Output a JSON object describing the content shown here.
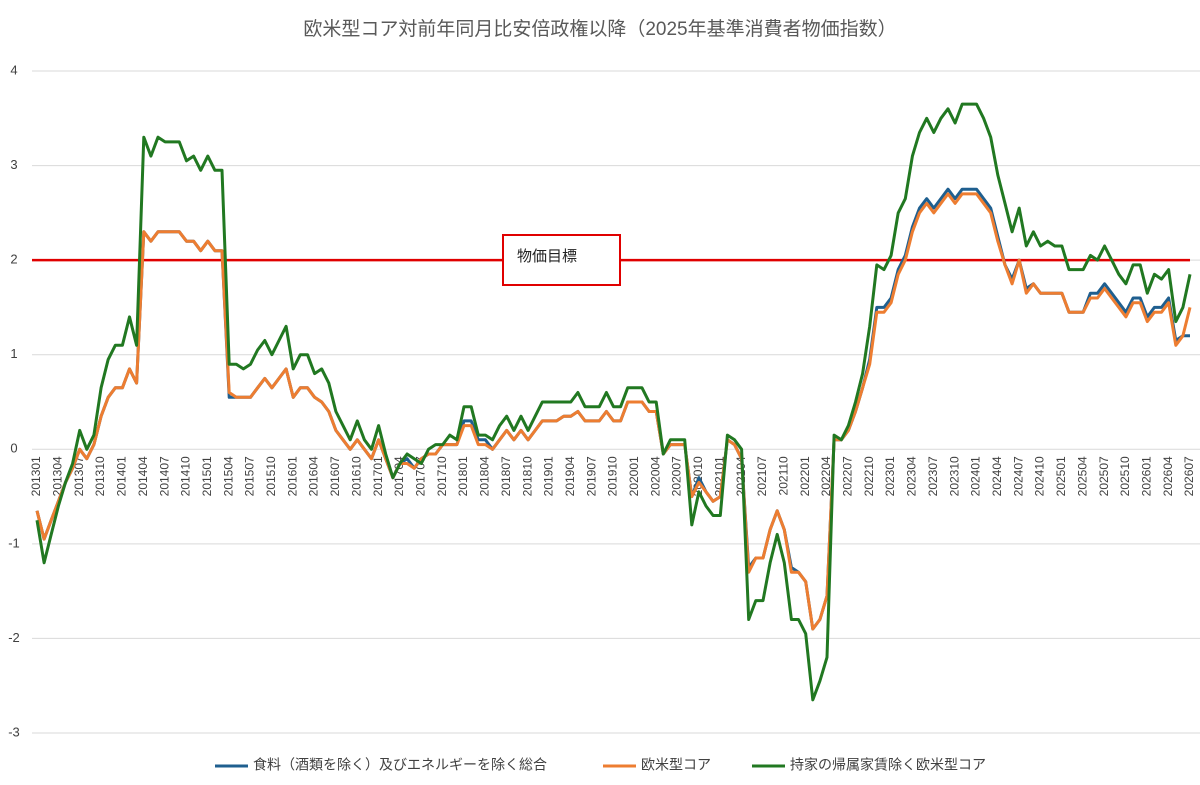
{
  "chart_data": {
    "type": "line",
    "title": "欧米型コア対前年同月比安倍政権以降（2025年基準消費者物価指数）",
    "categories": [
      "201301",
      null,
      null,
      "201304",
      null,
      null,
      "201307",
      null,
      null,
      "201310",
      null,
      null,
      "201401",
      null,
      null,
      "201404",
      null,
      null,
      "201407",
      null,
      null,
      "201410",
      null,
      null,
      "201501",
      null,
      null,
      "201504",
      null,
      null,
      "201507",
      null,
      null,
      "201510",
      null,
      null,
      "201601",
      null,
      null,
      "201604",
      null,
      null,
      "201607",
      null,
      null,
      "201610",
      null,
      null,
      "201701",
      null,
      null,
      "201704",
      null,
      null,
      "201707",
      null,
      null,
      "201710",
      null,
      null,
      "201801",
      null,
      null,
      "201804",
      null,
      null,
      "201807",
      null,
      null,
      "201810",
      null,
      null,
      "201901",
      null,
      null,
      "201904",
      null,
      null,
      "201907",
      null,
      null,
      "201910",
      null,
      null,
      "202001",
      null,
      null,
      "202004",
      null,
      null,
      "202007",
      null,
      null,
      "202010",
      null,
      null,
      "202101",
      null,
      null,
      "202104",
      null,
      null,
      "202107",
      null,
      null,
      "202110",
      null,
      null,
      "202201",
      null,
      null,
      "202204",
      null,
      null,
      "202207",
      null,
      null,
      "202210",
      null,
      null,
      "202301",
      null,
      null,
      "202304",
      null,
      null,
      "202307",
      null,
      null,
      "202310",
      null,
      null,
      "202401",
      null,
      null,
      "202404",
      null,
      null,
      "202407",
      null,
      null,
      "202410",
      null,
      null,
      "202501",
      null,
      null,
      "202504",
      null,
      null,
      "202507",
      null,
      null,
      "202510",
      null,
      null,
      "202601",
      null,
      null,
      "202604",
      null,
      null,
      "202607"
    ],
    "series": [
      {
        "name": "食料（酒類を除く）及びエネルギーを除く総合",
        "color": "#1f5f8f",
        "values": [
          -0.65,
          -0.95,
          -0.75,
          -0.55,
          -0.35,
          -0.2,
          0.0,
          -0.1,
          0.05,
          0.35,
          0.55,
          0.65,
          0.65,
          0.85,
          0.7,
          2.3,
          2.2,
          2.3,
          2.3,
          2.3,
          2.3,
          2.2,
          2.2,
          2.1,
          2.2,
          2.1,
          2.1,
          0.55,
          0.55,
          0.55,
          0.55,
          0.65,
          0.75,
          0.65,
          0.75,
          0.85,
          0.55,
          0.65,
          0.65,
          0.55,
          0.5,
          0.4,
          0.2,
          0.1,
          0.0,
          0.1,
          0.0,
          -0.1,
          0.1,
          -0.1,
          -0.3,
          -0.15,
          -0.1,
          -0.2,
          -0.1,
          -0.05,
          -0.05,
          0.05,
          0.05,
          0.05,
          0.3,
          0.3,
          0.1,
          0.1,
          0.0,
          0.1,
          0.2,
          0.1,
          0.2,
          0.1,
          0.2,
          0.3,
          0.3,
          0.3,
          0.35,
          0.35,
          0.4,
          0.3,
          0.3,
          0.3,
          0.4,
          0.3,
          0.3,
          0.5,
          0.5,
          0.5,
          0.4,
          0.4,
          -0.05,
          0.05,
          0.05,
          0.05,
          -0.5,
          -0.3,
          -0.45,
          -0.55,
          -0.5,
          0.1,
          0.05,
          -0.1,
          -1.25,
          -1.15,
          -1.15,
          -0.85,
          -0.65,
          -0.85,
          -1.25,
          -1.3,
          -1.4,
          -1.9,
          -1.8,
          -1.55,
          0.1,
          0.1,
          0.2,
          0.4,
          0.65,
          0.95,
          1.5,
          1.5,
          1.6,
          1.9,
          2.05,
          2.35,
          2.55,
          2.65,
          2.55,
          2.65,
          2.75,
          2.65,
          2.75,
          2.75,
          2.75,
          2.65,
          2.55,
          2.25,
          1.95,
          1.8,
          2.0,
          1.7,
          1.75,
          1.65,
          1.65,
          1.65,
          1.65,
          1.45,
          1.45,
          1.45,
          1.65,
          1.65,
          1.75,
          1.65,
          1.55,
          1.45,
          1.6,
          1.6,
          1.4,
          1.5,
          1.5,
          1.6,
          1.15,
          1.2,
          1.2
        ]
      },
      {
        "name": "欧米型コア",
        "color": "#ed7d31",
        "values": [
          -0.65,
          -0.95,
          -0.75,
          -0.55,
          -0.35,
          -0.2,
          0.0,
          -0.1,
          0.05,
          0.35,
          0.55,
          0.65,
          0.65,
          0.85,
          0.7,
          2.3,
          2.2,
          2.3,
          2.3,
          2.3,
          2.3,
          2.2,
          2.2,
          2.1,
          2.2,
          2.1,
          2.1,
          0.6,
          0.55,
          0.55,
          0.55,
          0.65,
          0.75,
          0.65,
          0.75,
          0.85,
          0.55,
          0.65,
          0.65,
          0.55,
          0.5,
          0.4,
          0.2,
          0.1,
          0.0,
          0.1,
          0.0,
          -0.1,
          0.1,
          -0.1,
          -0.3,
          -0.15,
          -0.15,
          -0.2,
          -0.1,
          -0.05,
          -0.05,
          0.05,
          0.05,
          0.05,
          0.25,
          0.25,
          0.05,
          0.05,
          0.0,
          0.1,
          0.2,
          0.1,
          0.2,
          0.1,
          0.2,
          0.3,
          0.3,
          0.3,
          0.35,
          0.35,
          0.4,
          0.3,
          0.3,
          0.3,
          0.4,
          0.3,
          0.3,
          0.5,
          0.5,
          0.5,
          0.4,
          0.4,
          -0.05,
          0.05,
          0.05,
          0.05,
          -0.5,
          -0.35,
          -0.45,
          -0.55,
          -0.5,
          0.1,
          0.05,
          -0.1,
          -1.3,
          -1.15,
          -1.15,
          -0.85,
          -0.65,
          -0.85,
          -1.3,
          -1.3,
          -1.4,
          -1.9,
          -1.8,
          -1.55,
          0.1,
          0.1,
          0.2,
          0.4,
          0.65,
          0.9,
          1.45,
          1.45,
          1.55,
          1.85,
          2.0,
          2.3,
          2.5,
          2.6,
          2.5,
          2.6,
          2.7,
          2.6,
          2.7,
          2.7,
          2.7,
          2.6,
          2.5,
          2.2,
          1.95,
          1.75,
          2.0,
          1.65,
          1.75,
          1.65,
          1.65,
          1.65,
          1.65,
          1.45,
          1.45,
          1.45,
          1.6,
          1.6,
          1.7,
          1.6,
          1.5,
          1.4,
          1.55,
          1.55,
          1.35,
          1.45,
          1.45,
          1.55,
          1.1,
          1.2,
          1.5
        ]
      },
      {
        "name": "持家の帰属家賃除く欧米型コア",
        "color": "#217821",
        "values": [
          -0.75,
          -1.2,
          -0.9,
          -0.6,
          -0.35,
          -0.15,
          0.2,
          0.0,
          0.15,
          0.65,
          0.95,
          1.1,
          1.1,
          1.4,
          1.1,
          3.3,
          3.1,
          3.3,
          3.25,
          3.25,
          3.25,
          3.05,
          3.1,
          2.95,
          3.1,
          2.95,
          2.95,
          0.9,
          0.9,
          0.85,
          0.9,
          1.05,
          1.15,
          1.0,
          1.15,
          1.3,
          0.85,
          1.0,
          1.0,
          0.8,
          0.85,
          0.7,
          0.4,
          0.25,
          0.1,
          0.3,
          0.1,
          0.0,
          0.25,
          -0.05,
          -0.3,
          -0.15,
          -0.05,
          -0.1,
          -0.15,
          0.0,
          0.05,
          0.05,
          0.15,
          0.1,
          0.45,
          0.45,
          0.15,
          0.15,
          0.1,
          0.25,
          0.35,
          0.2,
          0.35,
          0.2,
          0.35,
          0.5,
          0.5,
          0.5,
          0.5,
          0.5,
          0.6,
          0.45,
          0.45,
          0.45,
          0.6,
          0.45,
          0.45,
          0.65,
          0.65,
          0.65,
          0.5,
          0.5,
          -0.05,
          0.1,
          0.1,
          0.1,
          -0.8,
          -0.45,
          -0.6,
          -0.7,
          -0.7,
          0.15,
          0.1,
          0.0,
          -1.8,
          -1.6,
          -1.6,
          -1.2,
          -0.9,
          -1.2,
          -1.8,
          -1.8,
          -1.95,
          -2.65,
          -2.45,
          -2.2,
          0.15,
          0.1,
          0.25,
          0.5,
          0.8,
          1.3,
          1.95,
          1.9,
          2.05,
          2.5,
          2.65,
          3.1,
          3.35,
          3.5,
          3.35,
          3.5,
          3.6,
          3.45,
          3.65,
          3.65,
          3.65,
          3.5,
          3.3,
          2.9,
          2.6,
          2.3,
          2.55,
          2.15,
          2.3,
          2.15,
          2.2,
          2.15,
          2.15,
          1.9,
          1.9,
          1.9,
          2.05,
          2.0,
          2.15,
          2.0,
          1.85,
          1.75,
          1.95,
          1.95,
          1.65,
          1.85,
          1.8,
          1.9,
          1.35,
          1.5,
          1.85
        ]
      }
    ],
    "ylim": [
      -3,
      4
    ],
    "yticks": [
      -3,
      -2,
      -1,
      0,
      1,
      2,
      3,
      4
    ],
    "grid": true,
    "target": {
      "value": 2,
      "label": "物価目標",
      "color": "#e00000"
    },
    "legend": "bottom"
  }
}
